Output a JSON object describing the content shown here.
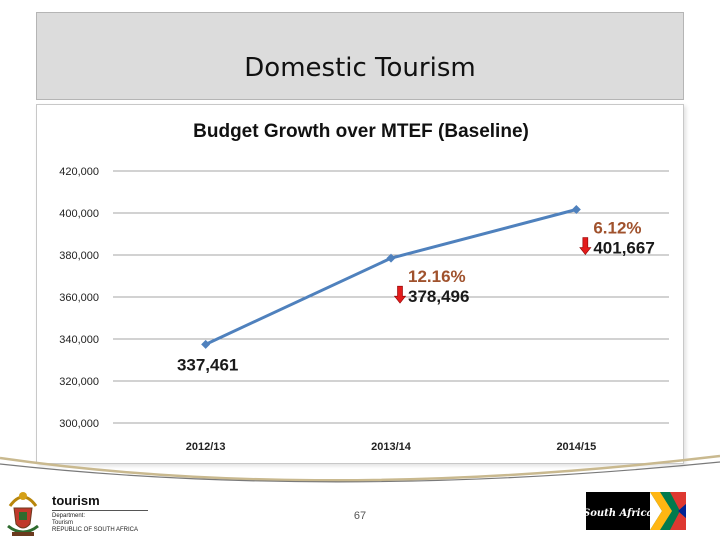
{
  "slide": {
    "title": "Domestic Tourism",
    "page_number": "67"
  },
  "footer": {
    "dept_name": "tourism",
    "dept_line1": "Department:",
    "dept_line2": "Tourism",
    "dept_line3": "REPUBLIC OF SOUTH AFRICA",
    "brand_text": "South Africa"
  },
  "chart_data": {
    "type": "line",
    "title": "Budget Growth over MTEF (Baseline)",
    "categories": [
      "2012/13",
      "2013/14",
      "2014/15"
    ],
    "series": [
      {
        "values": [
          337461,
          378496,
          401667
        ]
      }
    ],
    "value_labels": [
      "337,461",
      "378,496",
      "401,667"
    ],
    "growth_labels": [
      "",
      "12.16%",
      "6.12%"
    ],
    "ylim": [
      300000,
      420000
    ],
    "yticks": [
      300000,
      320000,
      340000,
      360000,
      380000,
      400000,
      420000
    ],
    "ytick_labels": [
      "300,000",
      "320,000",
      "340,000",
      "360,000",
      "380,000",
      "400,000",
      "420,000"
    ],
    "grid": true,
    "colors": {
      "line": "#4f81bd",
      "growth": "#a0522d",
      "arrow": "#e31b1b",
      "text": "#1a1a1a"
    }
  }
}
